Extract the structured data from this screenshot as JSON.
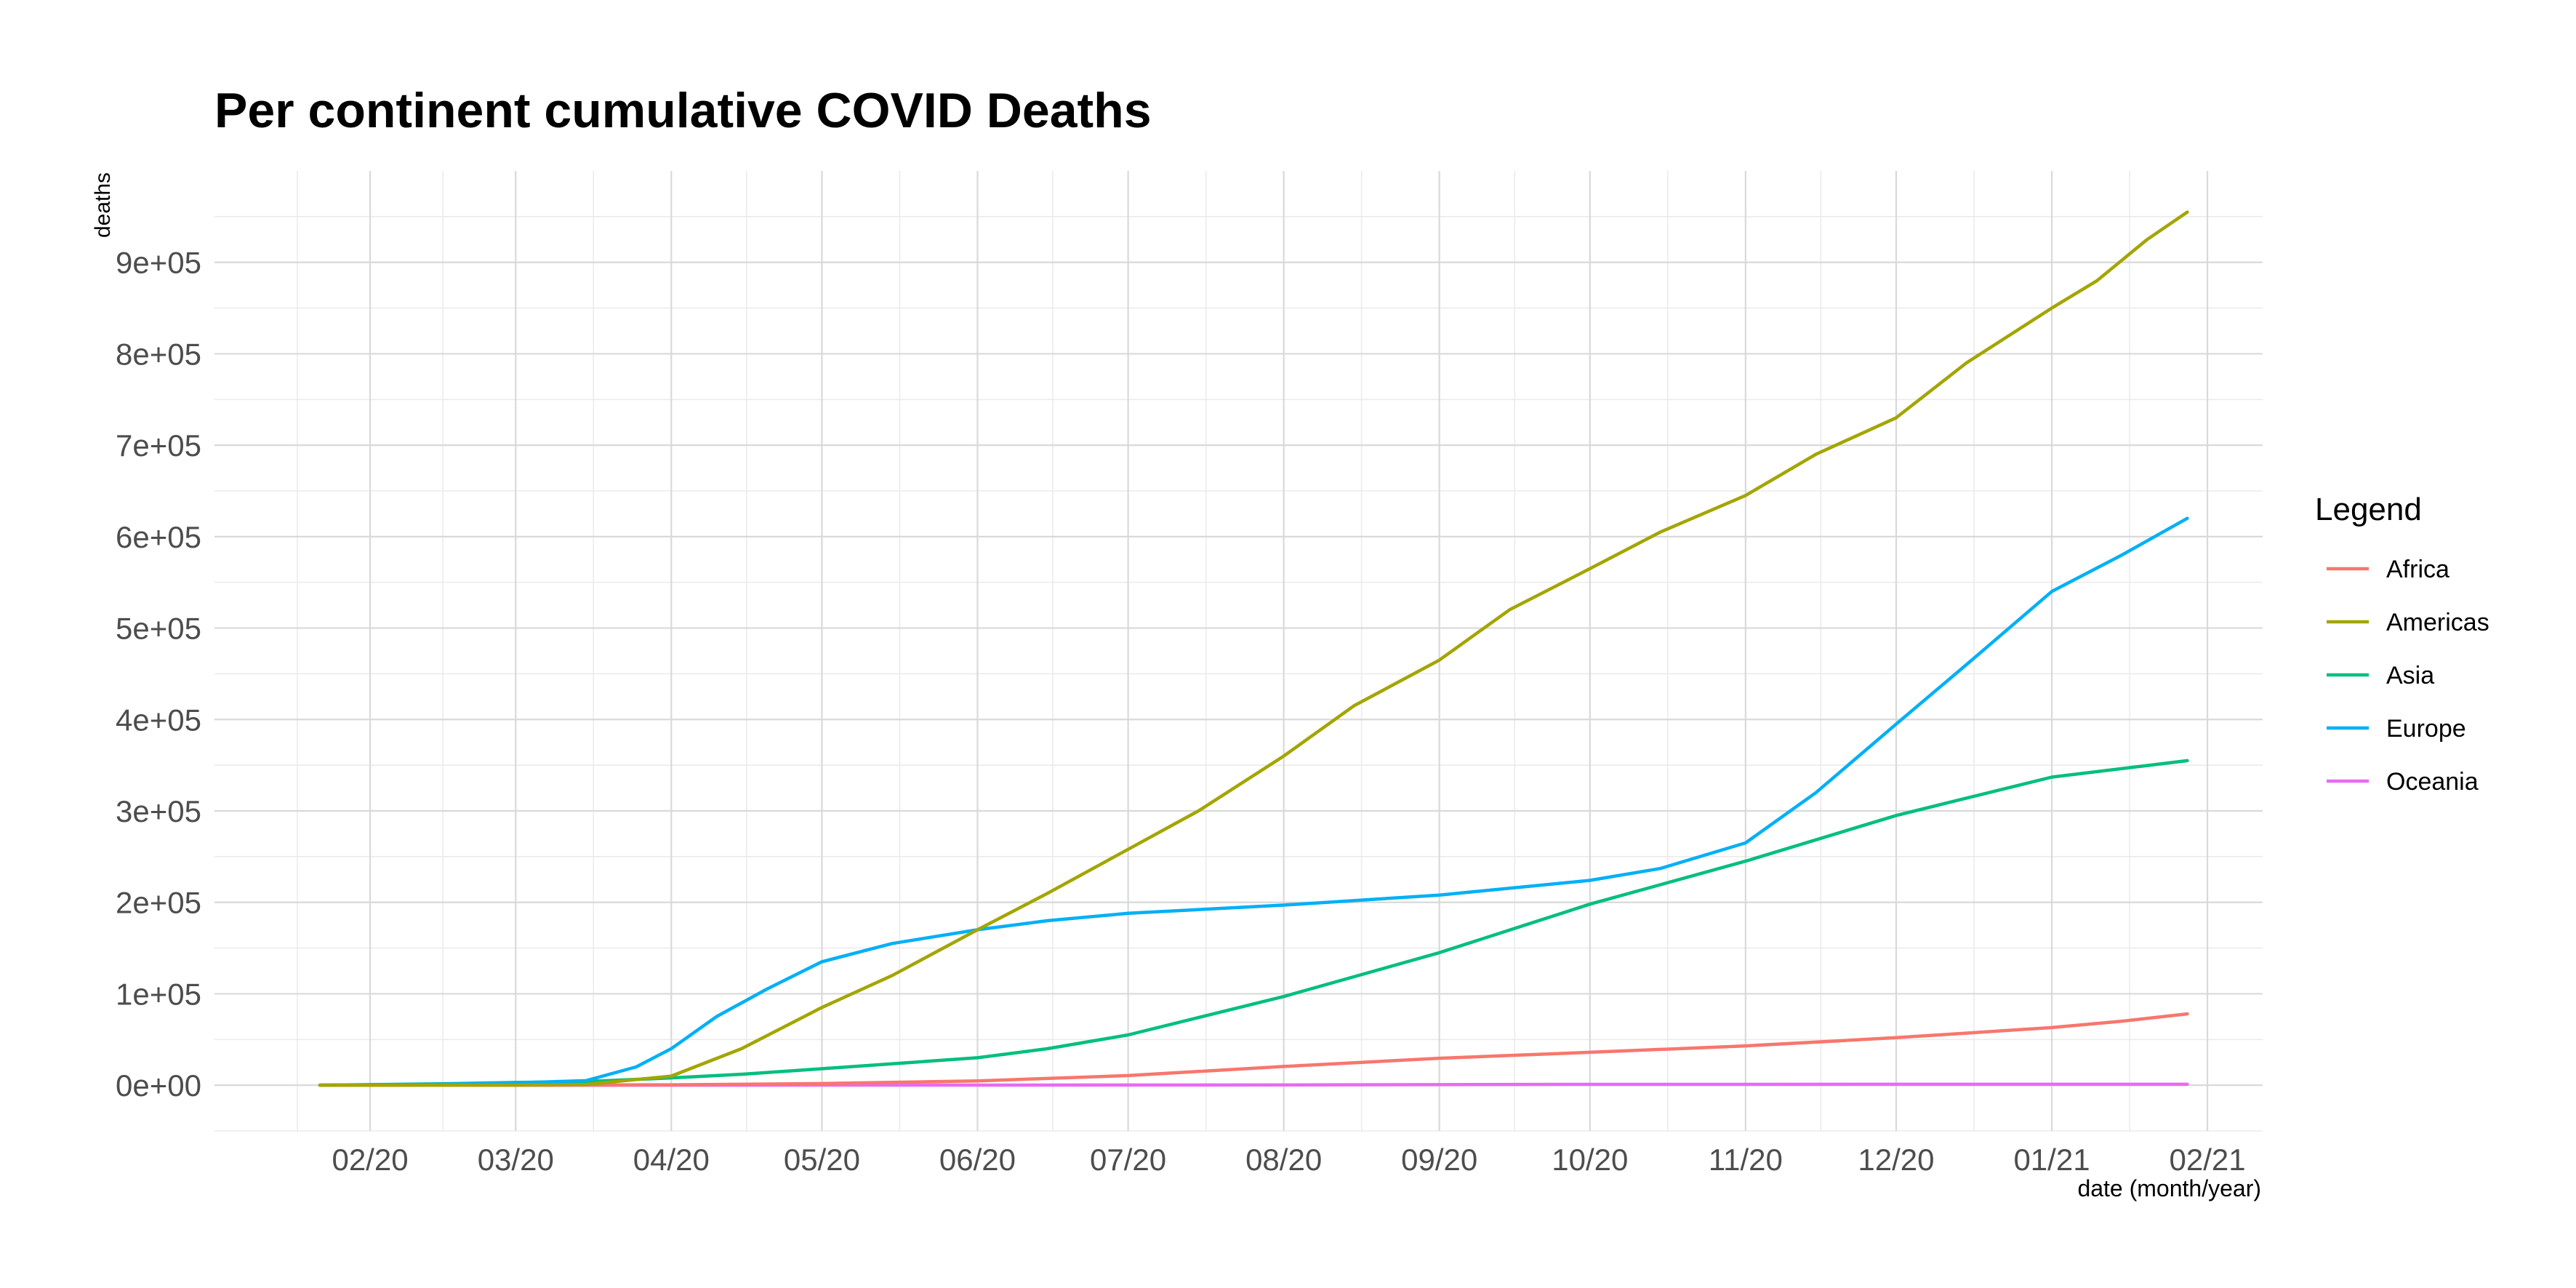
{
  "chart_data": {
    "type": "line",
    "title": "Per continent cumulative COVID Deaths",
    "xlabel": "date (month/year)",
    "ylabel": "deaths",
    "x_type": "date",
    "xlim": [
      "2020-01-01",
      "2021-02-12"
    ],
    "ylim": [
      -50000,
      1000000
    ],
    "y_ticks": [
      {
        "value": 0,
        "label": "0e+00"
      },
      {
        "value": 100000,
        "label": "1e+05"
      },
      {
        "value": 200000,
        "label": "2e+05"
      },
      {
        "value": 300000,
        "label": "3e+05"
      },
      {
        "value": 400000,
        "label": "4e+05"
      },
      {
        "value": 500000,
        "label": "5e+05"
      },
      {
        "value": 600000,
        "label": "6e+05"
      },
      {
        "value": 700000,
        "label": "7e+05"
      },
      {
        "value": 800000,
        "label": "8e+05"
      },
      {
        "value": 900000,
        "label": "9e+05"
      }
    ],
    "x_ticks": [
      {
        "date": "2020-02-01",
        "label": "02/20"
      },
      {
        "date": "2020-03-01",
        "label": "03/20"
      },
      {
        "date": "2020-04-01",
        "label": "04/20"
      },
      {
        "date": "2020-05-01",
        "label": "05/20"
      },
      {
        "date": "2020-06-01",
        "label": "06/20"
      },
      {
        "date": "2020-07-01",
        "label": "07/20"
      },
      {
        "date": "2020-08-01",
        "label": "08/20"
      },
      {
        "date": "2020-09-01",
        "label": "09/20"
      },
      {
        "date": "2020-10-01",
        "label": "10/20"
      },
      {
        "date": "2020-11-01",
        "label": "11/20"
      },
      {
        "date": "2020-12-01",
        "label": "12/20"
      },
      {
        "date": "2021-01-01",
        "label": "01/21"
      },
      {
        "date": "2021-02-01",
        "label": "02/21"
      }
    ],
    "grid": true,
    "legend": {
      "title": "Legend",
      "position": "right"
    },
    "series": [
      {
        "name": "Africa",
        "color": "#F8766D",
        "points": [
          [
            "2020-01-22",
            0
          ],
          [
            "2020-03-01",
            0
          ],
          [
            "2020-04-01",
            400
          ],
          [
            "2020-05-01",
            1800
          ],
          [
            "2020-06-01",
            4700
          ],
          [
            "2020-07-01",
            10500
          ],
          [
            "2020-08-01",
            20500
          ],
          [
            "2020-09-01",
            29500
          ],
          [
            "2020-10-01",
            36000
          ],
          [
            "2020-11-01",
            43000
          ],
          [
            "2020-12-01",
            52000
          ],
          [
            "2021-01-01",
            63000
          ],
          [
            "2021-01-15",
            70000
          ],
          [
            "2021-01-28",
            78000
          ]
        ]
      },
      {
        "name": "Americas",
        "color": "#A3A500",
        "points": [
          [
            "2020-01-22",
            0
          ],
          [
            "2020-03-01",
            100
          ],
          [
            "2020-03-15",
            800
          ],
          [
            "2020-04-01",
            10000
          ],
          [
            "2020-04-15",
            40000
          ],
          [
            "2020-05-01",
            85000
          ],
          [
            "2020-05-15",
            120000
          ],
          [
            "2020-06-01",
            170000
          ],
          [
            "2020-06-15",
            210000
          ],
          [
            "2020-07-01",
            258000
          ],
          [
            "2020-07-15",
            300000
          ],
          [
            "2020-08-01",
            360000
          ],
          [
            "2020-08-15",
            415000
          ],
          [
            "2020-09-01",
            465000
          ],
          [
            "2020-09-15",
            520000
          ],
          [
            "2020-10-01",
            565000
          ],
          [
            "2020-10-15",
            605000
          ],
          [
            "2020-11-01",
            645000
          ],
          [
            "2020-11-15",
            690000
          ],
          [
            "2020-12-01",
            730000
          ],
          [
            "2020-12-15",
            790000
          ],
          [
            "2021-01-01",
            850000
          ],
          [
            "2021-01-10",
            880000
          ],
          [
            "2021-01-20",
            925000
          ],
          [
            "2021-01-28",
            955000
          ]
        ]
      },
      {
        "name": "Asia",
        "color": "#00BF7D",
        "points": [
          [
            "2020-01-22",
            0
          ],
          [
            "2020-02-15",
            1500
          ],
          [
            "2020-03-01",
            3000
          ],
          [
            "2020-03-15",
            4000
          ],
          [
            "2020-04-01",
            8000
          ],
          [
            "2020-04-15",
            12000
          ],
          [
            "2020-05-01",
            18000
          ],
          [
            "2020-06-01",
            30000
          ],
          [
            "2020-06-15",
            40000
          ],
          [
            "2020-07-01",
            55000
          ],
          [
            "2020-08-01",
            97000
          ],
          [
            "2020-09-01",
            145000
          ],
          [
            "2020-10-01",
            198000
          ],
          [
            "2020-11-01",
            245000
          ],
          [
            "2020-12-01",
            295000
          ],
          [
            "2021-01-01",
            337000
          ],
          [
            "2021-01-28",
            355000
          ]
        ]
      },
      {
        "name": "Europe",
        "color": "#00B0F6",
        "points": [
          [
            "2020-01-22",
            0
          ],
          [
            "2020-02-15",
            1000
          ],
          [
            "2020-03-01",
            2500
          ],
          [
            "2020-03-15",
            5000
          ],
          [
            "2020-03-25",
            20000
          ],
          [
            "2020-04-01",
            40000
          ],
          [
            "2020-04-10",
            75000
          ],
          [
            "2020-04-20",
            105000
          ],
          [
            "2020-05-01",
            135000
          ],
          [
            "2020-05-15",
            155000
          ],
          [
            "2020-06-01",
            170000
          ],
          [
            "2020-06-15",
            180000
          ],
          [
            "2020-07-01",
            188000
          ],
          [
            "2020-08-01",
            197000
          ],
          [
            "2020-09-01",
            208000
          ],
          [
            "2020-10-01",
            224000
          ],
          [
            "2020-10-15",
            237000
          ],
          [
            "2020-11-01",
            265000
          ],
          [
            "2020-11-15",
            320000
          ],
          [
            "2020-12-01",
            395000
          ],
          [
            "2020-12-15",
            460000
          ],
          [
            "2021-01-01",
            540000
          ],
          [
            "2021-01-15",
            580000
          ],
          [
            "2021-01-28",
            620000
          ]
        ]
      },
      {
        "name": "Oceania",
        "color": "#E76BF3",
        "points": [
          [
            "2020-01-22",
            0
          ],
          [
            "2020-04-01",
            30
          ],
          [
            "2020-06-01",
            130
          ],
          [
            "2020-08-01",
            300
          ],
          [
            "2020-10-01",
            930
          ],
          [
            "2020-12-01",
            950
          ],
          [
            "2021-01-28",
            960
          ]
        ]
      }
    ]
  }
}
